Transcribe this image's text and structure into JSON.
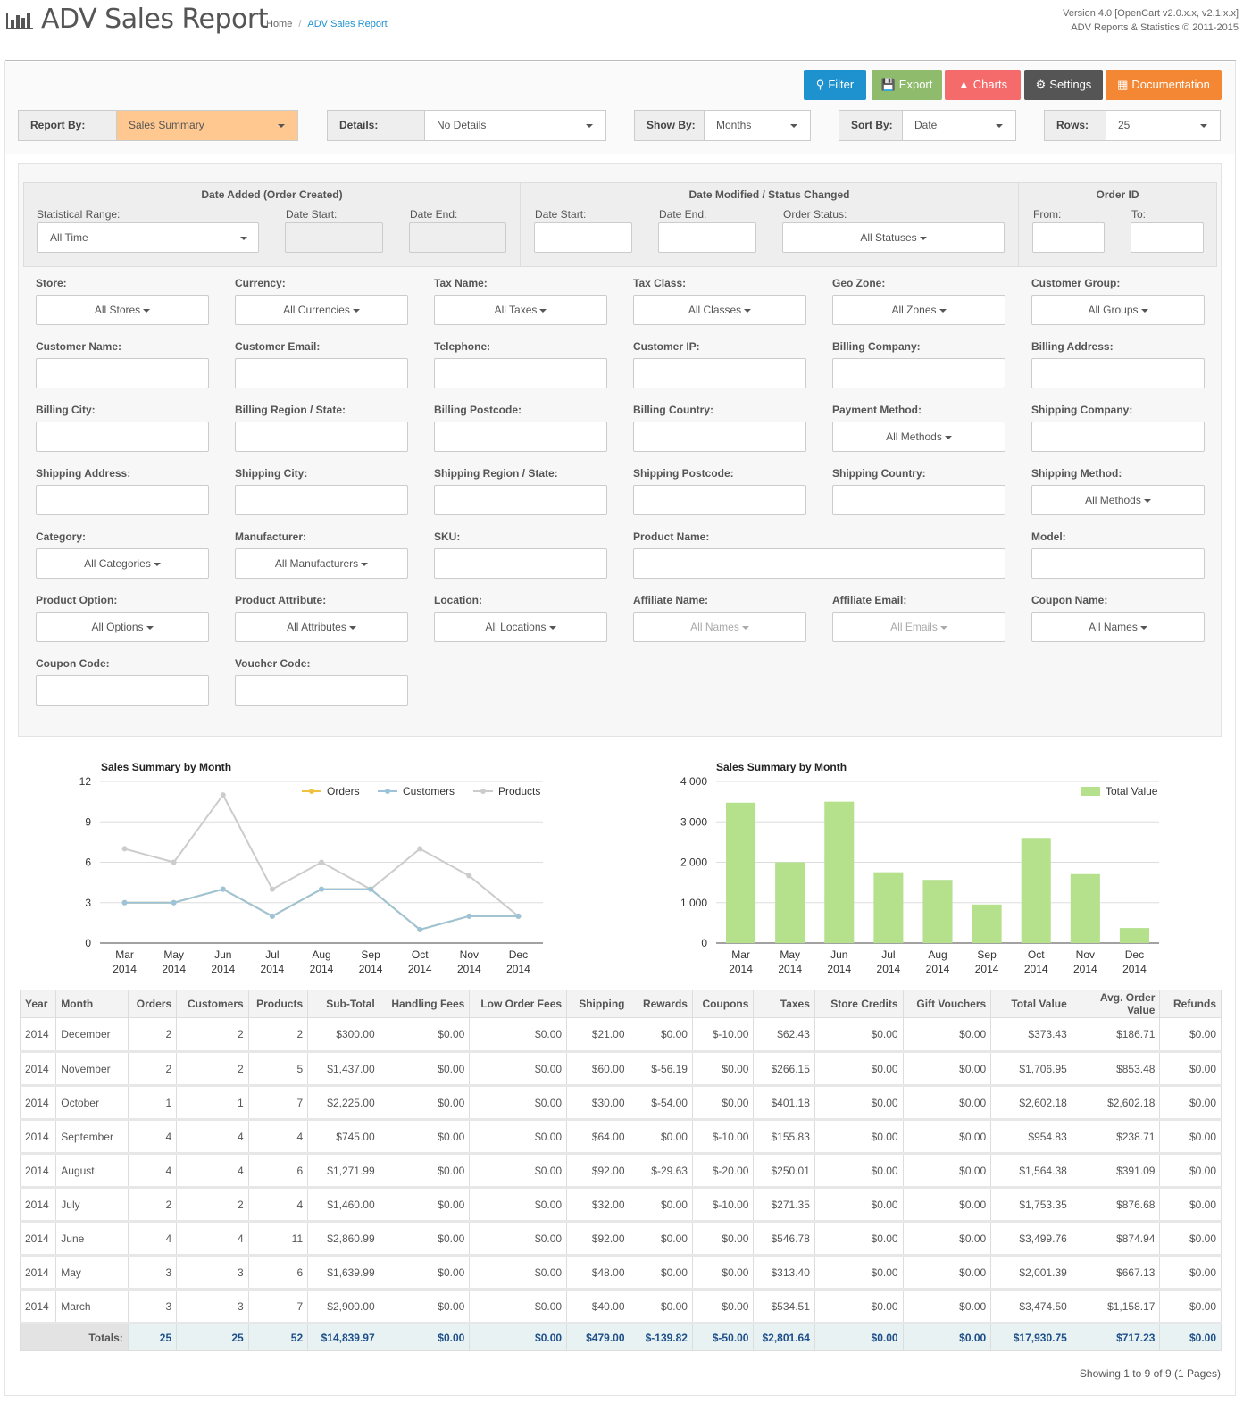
{
  "header": {
    "title": "ADV Sales Report",
    "breadcrumb": {
      "home": "Home",
      "sep": "/",
      "current": "ADV Sales Report"
    },
    "version_line1": "Version 4.0 [OpenCart v2.0.x.x, v2.1.x.x]",
    "version_line2": "ADV Reports & Statistics © 2011-2015"
  },
  "toolbar": {
    "filter": "Filter",
    "export": "Export",
    "charts": "Charts",
    "settings": "Settings",
    "documentation": "Documentation",
    "colors": {
      "filter": "#1e91cf",
      "export": "#8fbb6c",
      "charts": "#f56b6b",
      "settings": "#555555",
      "documentation": "#f38733"
    }
  },
  "selectors": {
    "report_by": {
      "label": "Report By:",
      "value": "Sales Summary"
    },
    "details": {
      "label": "Details:",
      "value": "No Details"
    },
    "show_by": {
      "label": "Show By:",
      "value": "Months"
    },
    "sort_by": {
      "label": "Sort By:",
      "value": "Date"
    },
    "rows": {
      "label": "Rows:",
      "value": "25"
    }
  },
  "dates": {
    "added": {
      "title": "Date Added (Order Created)",
      "range_label": "Statistical Range:",
      "range_value": "All Time",
      "start_label": "Date Start:",
      "end_label": "Date End:"
    },
    "modified": {
      "title": "Date Modified / Status Changed",
      "start_label": "Date Start:",
      "end_label": "Date End:",
      "status_label": "Order Status:",
      "status_value": "All Statuses"
    },
    "order_id": {
      "title": "Order ID",
      "from_label": "From:",
      "to_label": "To:"
    }
  },
  "filters": {
    "store": {
      "label": "Store:",
      "value": "All Stores"
    },
    "currency": {
      "label": "Currency:",
      "value": "All Currencies"
    },
    "tax_name": {
      "label": "Tax Name:",
      "value": "All Taxes"
    },
    "tax_class": {
      "label": "Tax Class:",
      "value": "All Classes"
    },
    "geo_zone": {
      "label": "Geo Zone:",
      "value": "All Zones"
    },
    "customer_group": {
      "label": "Customer Group:",
      "value": "All Groups"
    },
    "customer_name": {
      "label": "Customer Name:"
    },
    "customer_email": {
      "label": "Customer Email:"
    },
    "telephone": {
      "label": "Telephone:"
    },
    "customer_ip": {
      "label": "Customer IP:"
    },
    "billing_company": {
      "label": "Billing Company:"
    },
    "billing_address": {
      "label": "Billing Address:"
    },
    "billing_city": {
      "label": "Billing City:"
    },
    "billing_region": {
      "label": "Billing Region / State:"
    },
    "billing_postcode": {
      "label": "Billing Postcode:"
    },
    "billing_country": {
      "label": "Billing Country:"
    },
    "payment_method": {
      "label": "Payment Method:",
      "value": "All Methods"
    },
    "shipping_company": {
      "label": "Shipping Company:"
    },
    "shipping_address": {
      "label": "Shipping Address:"
    },
    "shipping_city": {
      "label": "Shipping City:"
    },
    "shipping_region": {
      "label": "Shipping Region / State:"
    },
    "shipping_postcode": {
      "label": "Shipping Postcode:"
    },
    "shipping_country": {
      "label": "Shipping Country:"
    },
    "shipping_method": {
      "label": "Shipping Method:",
      "value": "All Methods"
    },
    "category": {
      "label": "Category:",
      "value": "All Categories"
    },
    "manufacturer": {
      "label": "Manufacturer:",
      "value": "All Manufacturers"
    },
    "sku": {
      "label": "SKU:"
    },
    "product_name": {
      "label": "Product Name:"
    },
    "model": {
      "label": "Model:"
    },
    "product_option": {
      "label": "Product Option:",
      "value": "All Options"
    },
    "product_attribute": {
      "label": "Product Attribute:",
      "value": "All Attributes"
    },
    "location": {
      "label": "Location:",
      "value": "All Locations"
    },
    "affiliate_name": {
      "label": "Affiliate Name:",
      "value": "All Names"
    },
    "affiliate_email": {
      "label": "Affiliate Email:",
      "value": "All Emails"
    },
    "coupon_name": {
      "label": "Coupon Name:",
      "value": "All Names"
    },
    "coupon_code": {
      "label": "Coupon Code:"
    },
    "voucher_code": {
      "label": "Voucher Code:"
    }
  },
  "chart_data": [
    {
      "type": "line",
      "title": "Sales Summary by Month",
      "categories": [
        "Mar 2014",
        "May 2014",
        "Jun 2014",
        "Jul 2014",
        "Aug 2014",
        "Sep 2014",
        "Oct 2014",
        "Nov 2014",
        "Dec 2014"
      ],
      "series": [
        {
          "name": "Orders",
          "color": "#f0c040",
          "values": [
            3,
            3,
            4,
            2,
            4,
            4,
            1,
            2,
            2
          ]
        },
        {
          "name": "Customers",
          "color": "#9cc3da",
          "values": [
            3,
            3,
            4,
            2,
            4,
            4,
            1,
            2,
            2
          ]
        },
        {
          "name": "Products",
          "color": "#cccccc",
          "values": [
            7,
            6,
            11,
            4,
            6,
            4,
            7,
            5,
            2
          ]
        }
      ],
      "ylim": [
        0,
        12
      ],
      "yticks": [
        0,
        3,
        6,
        9,
        12
      ],
      "grid": true,
      "legend": "top-right"
    },
    {
      "type": "bar",
      "title": "Sales Summary by Month",
      "categories": [
        "Mar 2014",
        "May 2014",
        "Jun 2014",
        "Jul 2014",
        "Aug 2014",
        "Sep 2014",
        "Oct 2014",
        "Nov 2014",
        "Dec 2014"
      ],
      "series": [
        {
          "name": "Total Value",
          "color": "#b5e08c",
          "values": [
            3474.5,
            2001.39,
            3499.76,
            1753.35,
            1564.38,
            954.83,
            2602.18,
            1706.95,
            373.43
          ]
        }
      ],
      "ylim": [
        0,
        4000
      ],
      "yticks": [
        "0",
        "1 000",
        "2 000",
        "3 000",
        "4 000"
      ],
      "grid": true,
      "legend": "top-right"
    }
  ],
  "table": {
    "headers": [
      "Year",
      "Month",
      "Orders",
      "Customers",
      "Products",
      "Sub-Total",
      "Handling Fees",
      "Low Order Fees",
      "Shipping",
      "Rewards",
      "Coupons",
      "Taxes",
      "Store Credits",
      "Gift Vouchers",
      "Total Value",
      "Avg. Order Value",
      "Refunds"
    ],
    "rows": [
      [
        "2014",
        "December",
        "2",
        "2",
        "2",
        "$300.00",
        "$0.00",
        "$0.00",
        "$21.00",
        "$0.00",
        "$-10.00",
        "$62.43",
        "$0.00",
        "$0.00",
        "$373.43",
        "$186.71",
        "$0.00"
      ],
      [
        "2014",
        "November",
        "2",
        "2",
        "5",
        "$1,437.00",
        "$0.00",
        "$0.00",
        "$60.00",
        "$-56.19",
        "$0.00",
        "$266.15",
        "$0.00",
        "$0.00",
        "$1,706.95",
        "$853.48",
        "$0.00"
      ],
      [
        "2014",
        "October",
        "1",
        "1",
        "7",
        "$2,225.00",
        "$0.00",
        "$0.00",
        "$30.00",
        "$-54.00",
        "$0.00",
        "$401.18",
        "$0.00",
        "$0.00",
        "$2,602.18",
        "$2,602.18",
        "$0.00"
      ],
      [
        "2014",
        "September",
        "4",
        "4",
        "4",
        "$745.00",
        "$0.00",
        "$0.00",
        "$64.00",
        "$0.00",
        "$-10.00",
        "$155.83",
        "$0.00",
        "$0.00",
        "$954.83",
        "$238.71",
        "$0.00"
      ],
      [
        "2014",
        "August",
        "4",
        "4",
        "6",
        "$1,271.99",
        "$0.00",
        "$0.00",
        "$92.00",
        "$-29.63",
        "$-20.00",
        "$250.01",
        "$0.00",
        "$0.00",
        "$1,564.38",
        "$391.09",
        "$0.00"
      ],
      [
        "2014",
        "July",
        "2",
        "2",
        "4",
        "$1,460.00",
        "$0.00",
        "$0.00",
        "$32.00",
        "$0.00",
        "$-10.00",
        "$271.35",
        "$0.00",
        "$0.00",
        "$1,753.35",
        "$876.68",
        "$0.00"
      ],
      [
        "2014",
        "June",
        "4",
        "4",
        "11",
        "$2,860.99",
        "$0.00",
        "$0.00",
        "$92.00",
        "$0.00",
        "$0.00",
        "$546.78",
        "$0.00",
        "$0.00",
        "$3,499.76",
        "$874.94",
        "$0.00"
      ],
      [
        "2014",
        "May",
        "3",
        "3",
        "6",
        "$1,639.99",
        "$0.00",
        "$0.00",
        "$48.00",
        "$0.00",
        "$0.00",
        "$313.40",
        "$0.00",
        "$0.00",
        "$2,001.39",
        "$667.13",
        "$0.00"
      ],
      [
        "2014",
        "March",
        "3",
        "3",
        "7",
        "$2,900.00",
        "$0.00",
        "$0.00",
        "$40.00",
        "$0.00",
        "$0.00",
        "$534.51",
        "$0.00",
        "$0.00",
        "$3,474.50",
        "$1,158.17",
        "$0.00"
      ]
    ],
    "totals_label": "Totals:",
    "totals": [
      "25",
      "25",
      "52",
      "$14,839.97",
      "$0.00",
      "$0.00",
      "$479.00",
      "$-139.82",
      "$-50.00",
      "$2,801.64",
      "$0.00",
      "$0.00",
      "$17,930.75",
      "$717.23",
      "$0.00"
    ]
  },
  "pagination": "Showing 1 to 9 of 9 (1 Pages)"
}
